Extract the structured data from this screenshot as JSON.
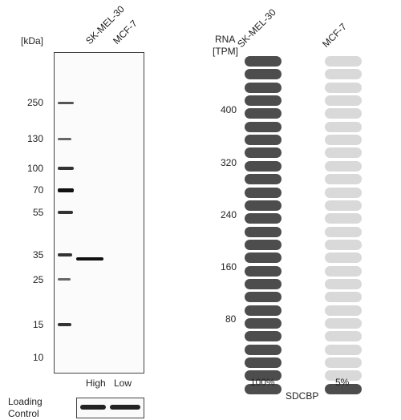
{
  "blot": {
    "kda_label": "[kDa]",
    "lanes": [
      "SK-MEL-30",
      "MCF-7"
    ],
    "markers": [
      "250",
      "130",
      "100",
      "70",
      "55",
      "35",
      "25",
      "15",
      "10"
    ],
    "expression_labels": [
      "High",
      "Low"
    ],
    "loading_control_line1": "Loading",
    "loading_control_line2": "Control"
  },
  "rna": {
    "header_line1": "RNA",
    "header_line2": "[TPM]",
    "columns": [
      {
        "label": "SK-MEL-30",
        "filled": 26,
        "total": 26,
        "percent": "100%"
      },
      {
        "label": "MCF-7",
        "filled": 1,
        "total": 26,
        "percent": "5%"
      }
    ],
    "axis_ticks": [
      "400",
      "320",
      "240",
      "160",
      "80"
    ],
    "gene": "SDCBP"
  },
  "colors": {
    "filled": "#4d4d4d",
    "empty": "#d9d9d9",
    "band": "#111111"
  }
}
